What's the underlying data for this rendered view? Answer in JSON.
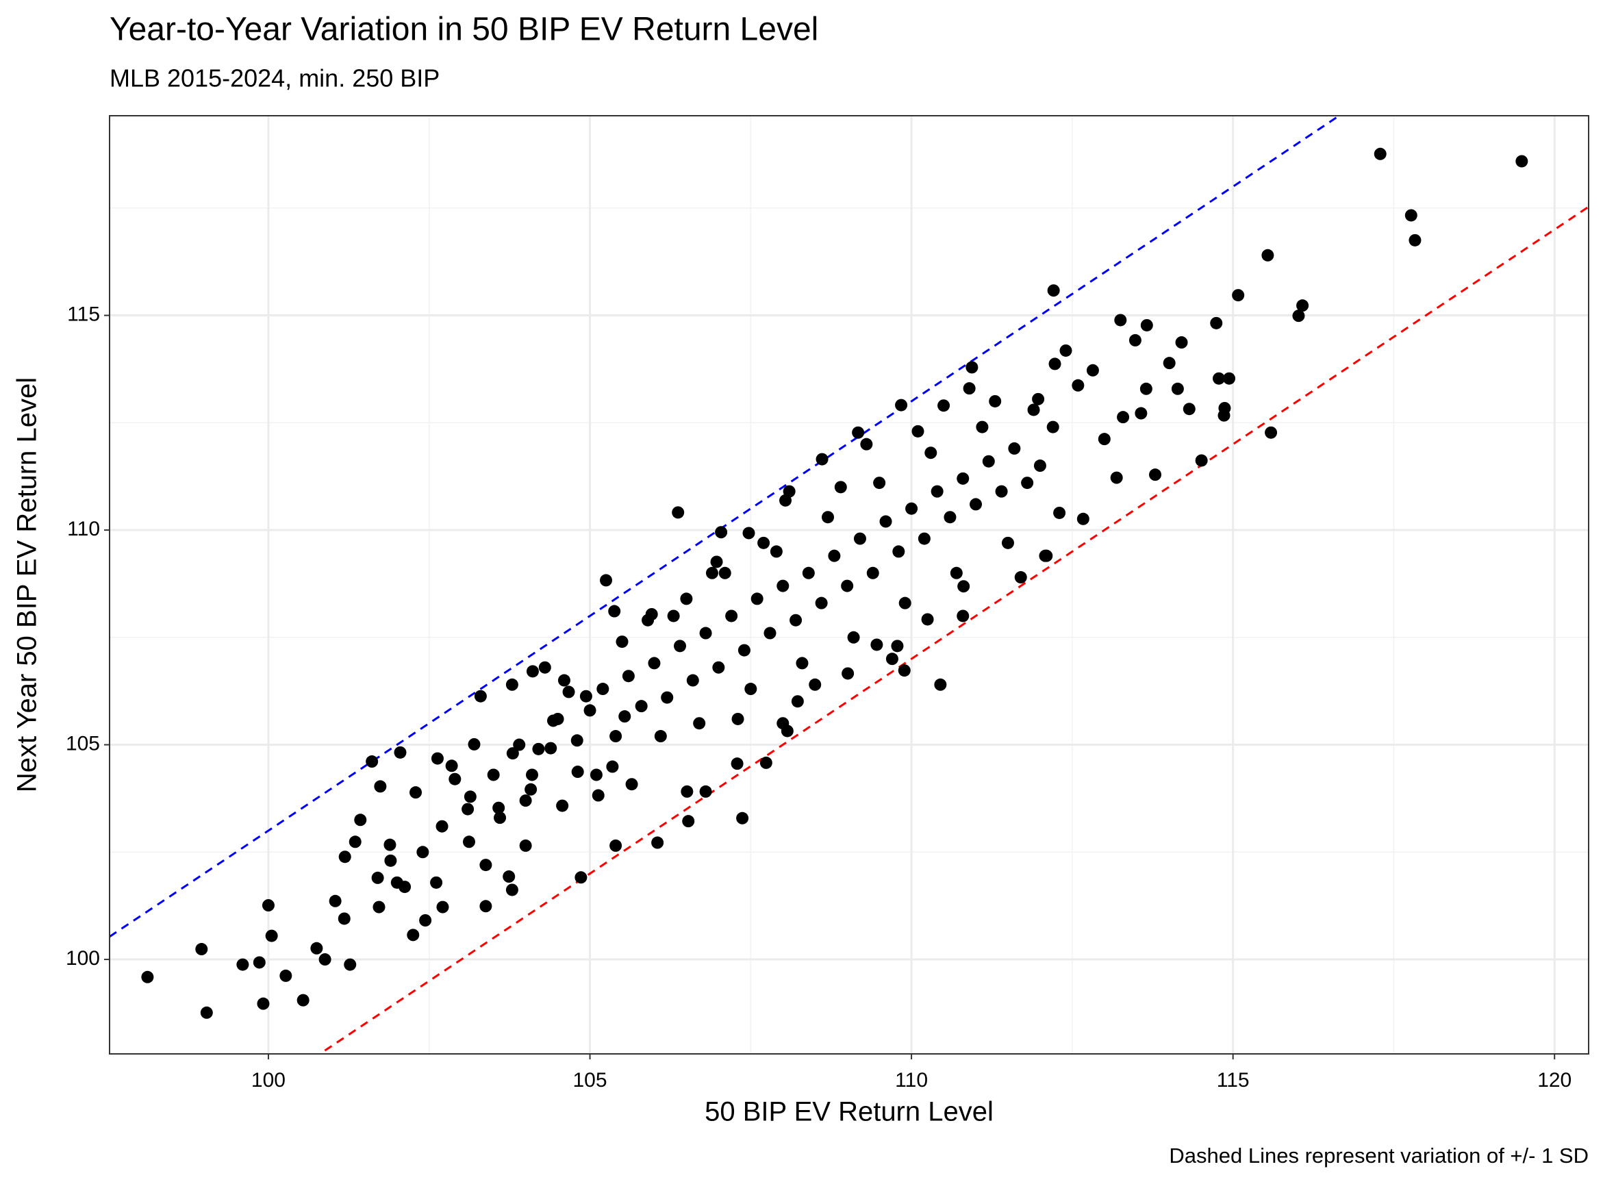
{
  "chart_data": {
    "type": "scatter",
    "title": "Year-to-Year Variation in 50 BIP EV Return Level",
    "subtitle": "MLB 2015-2024, min. 250 BIP",
    "x_label": "50 BIP EV Return Level",
    "y_label": "Next Year 50 BIP EV Return Level",
    "caption": "Dashed Lines represent variation of +/- 1 SD",
    "xlim": [
      97.53,
      120.53
    ],
    "ylim": [
      97.8,
      119.65
    ],
    "xticks": [
      100,
      105,
      110,
      115,
      120
    ],
    "yticks": [
      100,
      105,
      110,
      115
    ],
    "xminor": [
      102.5,
      107.5,
      112.5,
      117.5
    ],
    "yminor": [
      102.5,
      107.5,
      112.5,
      117.5
    ],
    "grid": true,
    "color": "#000000",
    "lines": [
      {
        "color": "#0000ff",
        "slope": 1,
        "intercept": 3
      },
      {
        "color": "#ff0000",
        "slope": 1,
        "intercept": -3
      }
    ],
    "x": [
      117.29,
      119.49,
      117.77,
      117.83,
      115.54,
      115.08,
      116.08,
      116.02,
      115.59,
      112.21,
      106.37,
      110.45,
      109.89,
      107.37,
      104.86,
      106.05,
      105.4,
      105.25,
      98.12,
      99.04,
      98.96,
      99.6,
      99.86,
      99.92,
      100.0,
      100.05,
      100.27,
      100.54,
      100.75,
      100.88,
      101.27,
      101.18,
      101.04,
      101.61,
      102.05,
      101.74,
      101.72,
      102.25,
      102.44,
      102.71,
      101.19,
      101.35,
      101.43,
      101.89,
      102.0,
      102.12,
      102.29,
      102.63,
      102.85,
      103.3,
      103.2,
      103.38,
      103.38,
      103.79,
      103.74,
      103.79,
      104.11,
      103.12,
      102.61,
      103.14,
      103.58,
      104.0,
      104.08,
      104.39,
      104.57,
      104.81,
      104.43,
      104.67,
      104.94,
      105.38,
      105.96,
      105.13,
      105.35,
      105.65,
      105.54,
      106.53,
      106.8,
      106.51,
      107.29,
      107.74,
      108.07,
      108.23,
      106.97,
      107.04,
      107.47,
      108.04,
      108.61,
      109.17,
      109.84,
      109.01,
      109.46,
      109.78,
      110.25,
      110.81,
      110.94,
      112.23,
      113.25,
      113.66,
      113.48,
      114.2,
      114.01,
      114.74,
      114.78,
      114.94,
      114.87,
      114.86,
      114.51,
      113.79,
      114.32,
      114.14,
      113.65,
      113.57,
      113.29,
      113.0,
      112.67,
      112.08,
      113.19,
      111.97,
      112.59,
      112.82,
      112.4,
      104.2,
      104.5,
      104.8,
      105.0,
      105.2,
      105.4,
      105.6,
      105.8,
      106.0,
      106.2,
      106.4,
      106.6,
      106.8,
      107.0,
      107.2,
      107.4,
      107.6,
      107.8,
      108.0,
      108.2,
      108.4,
      108.6,
      108.8,
      109.0,
      109.2,
      109.4,
      109.6,
      109.8,
      110.0,
      110.2,
      110.4,
      110.6,
      110.8,
      111.0,
      111.2,
      111.4,
      111.6,
      111.8,
      112.0,
      112.2,
      104.0,
      104.3,
      105.1,
      105.5,
      106.1,
      106.3,
      106.7,
      107.1,
      107.5,
      107.9,
      108.3,
      108.7,
      109.1,
      109.5,
      109.9,
      110.3,
      110.7,
      111.1,
      111.5,
      111.9,
      112.3,
      103.5,
      103.9,
      103.1,
      102.7,
      102.4,
      101.9,
      101.7,
      102.9,
      103.6,
      108.1,
      108.9,
      109.3,
      110.1,
      110.5,
      111.3,
      110.9,
      106.5,
      106.9,
      105.9,
      107.7,
      109.7,
      110.8,
      111.7,
      112.1,
      107.3,
      108.5,
      108.0,
      104.6,
      103.8,
      104.1
    ],
    "values": [
      118.76,
      118.59,
      117.33,
      116.75,
      116.4,
      115.47,
      115.23,
      114.99,
      112.27,
      115.58,
      110.41,
      106.4,
      106.73,
      103.29,
      101.91,
      102.72,
      102.65,
      108.83,
      99.59,
      98.76,
      100.24,
      99.88,
      99.93,
      98.97,
      101.26,
      100.55,
      99.62,
      99.05,
      100.26,
      100.0,
      99.88,
      100.95,
      101.36,
      104.61,
      104.82,
      104.03,
      101.22,
      100.57,
      100.91,
      101.22,
      102.39,
      102.74,
      103.25,
      102.67,
      101.79,
      101.69,
      103.89,
      104.68,
      104.51,
      106.13,
      105.01,
      102.2,
      101.24,
      106.4,
      101.93,
      101.62,
      106.71,
      102.74,
      101.79,
      103.79,
      103.53,
      102.65,
      103.96,
      104.92,
      103.58,
      104.37,
      105.56,
      106.23,
      106.13,
      108.11,
      108.04,
      103.82,
      104.49,
      104.08,
      105.66,
      103.22,
      103.91,
      103.91,
      104.56,
      104.58,
      105.32,
      106.01,
      109.26,
      109.95,
      109.93,
      110.69,
      111.65,
      112.27,
      112.91,
      106.66,
      107.33,
      107.3,
      107.92,
      108.69,
      113.79,
      113.87,
      114.89,
      114.77,
      114.42,
      114.37,
      113.89,
      114.82,
      113.53,
      113.53,
      112.84,
      112.67,
      111.62,
      111.29,
      112.82,
      113.29,
      113.29,
      112.72,
      112.63,
      112.12,
      110.26,
      109.4,
      111.22,
      113.05,
      113.37,
      113.72,
      114.18,
      104.9,
      105.6,
      105.1,
      105.8,
      106.3,
      105.2,
      106.6,
      105.9,
      106.9,
      106.1,
      107.3,
      106.5,
      107.6,
      106.8,
      108.0,
      107.2,
      108.4,
      107.6,
      108.7,
      107.9,
      109.0,
      108.3,
      109.4,
      108.7,
      109.8,
      109.0,
      110.2,
      109.5,
      110.5,
      109.8,
      110.9,
      110.3,
      111.2,
      110.6,
      111.6,
      110.9,
      111.9,
      111.1,
      111.5,
      112.4,
      103.7,
      106.8,
      104.3,
      107.4,
      105.2,
      108.0,
      105.5,
      109.0,
      106.3,
      109.5,
      106.9,
      110.3,
      107.5,
      111.1,
      108.3,
      111.8,
      109.0,
      112.4,
      109.7,
      112.8,
      110.4,
      104.3,
      105.0,
      103.5,
      103.1,
      102.5,
      102.3,
      101.9,
      104.2,
      103.3,
      110.9,
      111.0,
      112.0,
      112.3,
      112.9,
      113.0,
      113.3,
      108.4,
      109.0,
      107.9,
      109.7,
      107.0,
      108.0,
      108.9,
      109.4,
      105.6,
      106.4,
      105.5,
      106.5,
      104.8,
      104.3
    ]
  }
}
